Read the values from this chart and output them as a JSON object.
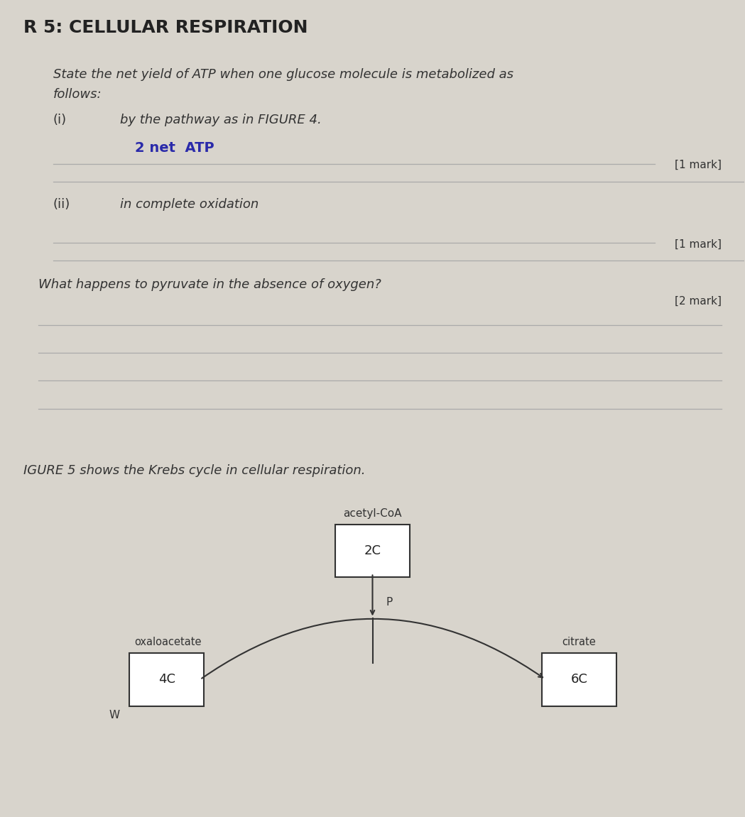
{
  "background_color": "#d8d4cc",
  "page_background": "#f0efec",
  "title": "R 5: CELLULAR RESPIRATION",
  "title_fontsize": 18,
  "title_color": "#222222",
  "body_text_color": "#333333",
  "answer_text_color": "#2a2aaa",
  "line_color": "#999999",
  "q_intro": "State the net yield of ATP when one glucose molecule is metabolized as follows:",
  "q_i_label": "(i)",
  "q_i_text": "by the pathway as in FIGURE 4.",
  "q_i_answer": "2 net  ATP",
  "q_i_mark": "[1 mark]",
  "q_ii_label": "(ii)",
  "q_ii_text": "in complete oxidation",
  "q_ii_mark": "[1 mark]",
  "q2_text": "What happens to pyruvate in the absence of oxygen?",
  "q2_mark": "[2 mark]",
  "figure_intro": "IGURE 5 shows the Krebs cycle in cellular respiration.",
  "acetyl_coa_label": "acetyl-CoA",
  "box_2c_label": "2C",
  "p_label": "P",
  "oxaloacetate_label": "oxaloacetate",
  "box_4c_label": "4C",
  "w_label": "W",
  "citrate_label": "citrate",
  "box_6c_label": "6C"
}
